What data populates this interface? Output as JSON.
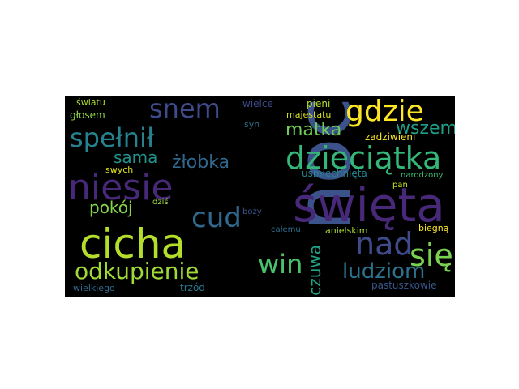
{
  "words": [
    {
      "key": "noc",
      "text": "noc",
      "color": "#3b528b"
    },
    {
      "key": "swieta",
      "text": "święta",
      "color": "#482878"
    },
    {
      "key": "cicha",
      "text": "cicha",
      "color": "#b5de2b"
    },
    {
      "key": "niesie",
      "text": "niesie",
      "color": "#482878"
    },
    {
      "key": "dzieciatka",
      "text": "dzieciątka",
      "color": "#35b779"
    },
    {
      "key": "gdzie",
      "text": "gdzie",
      "color": "#fde725"
    },
    {
      "key": "snem",
      "text": "snem",
      "color": "#3e4a89"
    },
    {
      "key": "spelnil",
      "text": "spełnił",
      "color": "#26828e"
    },
    {
      "key": "odkupienie",
      "text": "odkupienie",
      "color": "#a0da39"
    },
    {
      "key": "cud",
      "text": "cud",
      "color": "#31688e"
    },
    {
      "key": "nad",
      "text": "nad",
      "color": "#3e4a89"
    },
    {
      "key": "sie",
      "text": "się",
      "color": "#7ad151"
    },
    {
      "key": "win",
      "text": "win",
      "color": "#4ac16d"
    },
    {
      "key": "matka",
      "text": "matka",
      "color": "#6ece58"
    },
    {
      "key": "wszem",
      "text": "wszem",
      "color": "#1f9e89"
    },
    {
      "key": "ludziom",
      "text": "ludziom",
      "color": "#2c728e"
    },
    {
      "key": "czuwa",
      "text": "czuwa",
      "color": "#20a486"
    },
    {
      "key": "zlobka",
      "text": "żłobka",
      "color": "#31688e"
    },
    {
      "key": "sama",
      "text": "sama",
      "color": "#21918c"
    },
    {
      "key": "pokoj",
      "text": "pokój",
      "color": "#84d44b"
    },
    {
      "key": "swiatu",
      "text": "światu",
      "color": "#addc30"
    },
    {
      "key": "glosem",
      "text": "głosem",
      "color": "#8fd744"
    },
    {
      "key": "swych",
      "text": "swych",
      "color": "#dde318"
    },
    {
      "key": "dzis",
      "text": "dziś",
      "color": "#9bd93c"
    },
    {
      "key": "wielce",
      "text": "wielce",
      "color": "#3e4a89"
    },
    {
      "key": "pieni",
      "text": "pieni",
      "color": "#b2dd2d"
    },
    {
      "key": "syn",
      "text": "syn",
      "color": "#2c728e"
    },
    {
      "key": "majestatu",
      "text": "majestatu",
      "color": "#d8e219"
    },
    {
      "key": "zadziwieni",
      "text": "zadziwieni",
      "color": "#fde725"
    },
    {
      "key": "usmiechnieta",
      "text": "uśmiechnięta",
      "color": "#25848e"
    },
    {
      "key": "narodzony",
      "text": "narodzony",
      "color": "#3dbc74"
    },
    {
      "key": "pan",
      "text": "pan",
      "color": "#c5e021"
    },
    {
      "key": "bozy",
      "text": "boży",
      "color": "#39568c"
    },
    {
      "key": "calemu",
      "text": "całemu",
      "color": "#2d708e"
    },
    {
      "key": "anielskim",
      "text": "anielskim",
      "color": "#a8db34"
    },
    {
      "key": "biegna",
      "text": "biegną",
      "color": "#fde725"
    },
    {
      "key": "pastuszkowie",
      "text": "pastuszkowie",
      "color": "#39568c"
    },
    {
      "key": "wielkiego",
      "text": "wielkiego",
      "color": "#31688e"
    },
    {
      "key": "trzod",
      "text": "trzód",
      "color": "#2a788e"
    }
  ]
}
